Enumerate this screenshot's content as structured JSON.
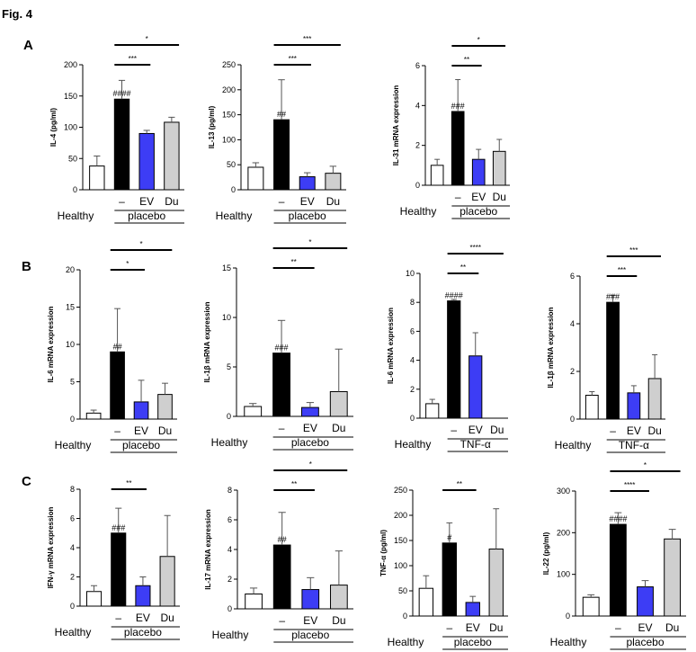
{
  "figure": {
    "title": "Fig. 4",
    "panels": [
      "A",
      "B",
      "C"
    ],
    "colors": {
      "healthy": "#ffffff",
      "placebo": "#000000",
      "ev": "#3d3df5",
      "du": "#cfcfcf",
      "axis": "#000000"
    }
  },
  "chart_data": [
    {
      "type": "bar",
      "ylabel": "IL-4 (pg/ml)",
      "ylim": [
        0,
        200
      ],
      "yticks": [
        0,
        50,
        100,
        150,
        200
      ],
      "categories": [
        "",
        "–",
        "EV",
        "Du"
      ],
      "values": [
        38,
        145,
        90,
        108
      ],
      "errors": [
        16,
        30,
        5,
        8
      ],
      "marks": [
        "",
        "####",
        "",
        ""
      ],
      "brackets": [
        {
          "from": 1,
          "to": 2,
          "label": "***"
        },
        {
          "from": 1,
          "to": 3,
          "label": "*"
        }
      ],
      "group_labels": {
        "healthy": "Healthy",
        "treatment": "placebo"
      }
    },
    {
      "type": "bar",
      "ylabel": "IL-13 (pg/ml)",
      "ylim": [
        0,
        250
      ],
      "yticks": [
        0,
        50,
        100,
        150,
        200,
        250
      ],
      "categories": [
        "",
        "–",
        "EV",
        "Du"
      ],
      "values": [
        45,
        140,
        26,
        33
      ],
      "errors": [
        9,
        80,
        8,
        14
      ],
      "marks": [
        "",
        "##",
        "",
        ""
      ],
      "brackets": [
        {
          "from": 1,
          "to": 2,
          "label": "***"
        },
        {
          "from": 1,
          "to": 3,
          "label": "***"
        }
      ],
      "group_labels": {
        "healthy": "Healthy",
        "treatment": "placebo"
      }
    },
    {
      "type": "bar",
      "ylabel": "IL-31 mRNA expression",
      "ylim": [
        0,
        6
      ],
      "yticks": [
        0,
        2,
        4,
        6
      ],
      "categories": [
        "",
        "–",
        "EV",
        "Du"
      ],
      "values": [
        1.0,
        3.7,
        1.3,
        1.7
      ],
      "errors": [
        0.3,
        1.6,
        0.5,
        0.6
      ],
      "marks": [
        "",
        "###",
        "",
        ""
      ],
      "brackets": [
        {
          "from": 1,
          "to": 2,
          "label": "**"
        },
        {
          "from": 1,
          "to": 3,
          "label": "*"
        }
      ],
      "group_labels": {
        "healthy": "Healthy",
        "treatment": "placebo"
      }
    },
    {
      "type": "bar",
      "ylabel": "IL-6 mRNA expression",
      "ylim": [
        0,
        20
      ],
      "yticks": [
        0,
        5,
        10,
        15,
        20
      ],
      "categories": [
        "",
        "–",
        "EV",
        "Du"
      ],
      "values": [
        0.8,
        9.0,
        2.3,
        3.3
      ],
      "errors": [
        0.4,
        5.8,
        2.9,
        1.5
      ],
      "marks": [
        "",
        "##",
        "",
        ""
      ],
      "brackets": [
        {
          "from": 1,
          "to": 2,
          "label": "*"
        },
        {
          "from": 1,
          "to": 3,
          "label": "*"
        }
      ],
      "group_labels": {
        "healthy": "Healthy",
        "treatment": "placebo"
      }
    },
    {
      "type": "bar",
      "ylabel": "IL-1β mRNA expression",
      "ylim": [
        0,
        15
      ],
      "yticks": [
        0,
        5,
        10,
        15
      ],
      "categories": [
        "",
        "–",
        "EV",
        "Du"
      ],
      "values": [
        1.0,
        6.4,
        0.9,
        2.5
      ],
      "errors": [
        0.3,
        3.3,
        0.5,
        4.3
      ],
      "marks": [
        "",
        "###",
        "",
        ""
      ],
      "brackets": [
        {
          "from": 1,
          "to": 2,
          "label": "**"
        },
        {
          "from": 1,
          "to": 3,
          "label": "*"
        }
      ],
      "group_labels": {
        "healthy": "Healthy",
        "treatment": "placebo"
      }
    },
    {
      "type": "bar",
      "ylabel": "IL-6 mRNA expression",
      "ylim": [
        0,
        10
      ],
      "yticks": [
        0,
        2,
        4,
        6,
        8,
        10
      ],
      "categories": [
        "",
        "–",
        "EV",
        "Du"
      ],
      "values": [
        1.0,
        8.1,
        4.3,
        0
      ],
      "errors": [
        0.3,
        0.1,
        1.6,
        0
      ],
      "marks": [
        "",
        "####",
        "",
        ""
      ],
      "brackets": [
        {
          "from": 1,
          "to": 2,
          "label": "**"
        },
        {
          "from": 1,
          "to": 3,
          "label": "****"
        }
      ],
      "group_labels": {
        "healthy": "Healthy",
        "treatment": "TNF-α"
      }
    },
    {
      "type": "bar",
      "ylabel": "IL-1β mRNA expression",
      "ylim": [
        0,
        6
      ],
      "yticks": [
        0,
        2,
        4,
        6
      ],
      "categories": [
        "",
        "–",
        "EV",
        "Du"
      ],
      "values": [
        1.0,
        4.9,
        1.1,
        1.7
      ],
      "errors": [
        0.15,
        0.3,
        0.3,
        1.0
      ],
      "marks": [
        "",
        "###",
        "",
        ""
      ],
      "brackets": [
        {
          "from": 1,
          "to": 2,
          "label": "***"
        },
        {
          "from": 1,
          "to": 3,
          "label": "***"
        }
      ],
      "group_labels": {
        "healthy": "Healthy",
        "treatment": "TNF-α"
      }
    },
    {
      "type": "bar",
      "ylabel": "IFN-γ mRNA expression",
      "ylim": [
        0,
        8
      ],
      "yticks": [
        0,
        2,
        4,
        6,
        8
      ],
      "categories": [
        "",
        "–",
        "EV",
        "Du"
      ],
      "values": [
        1.0,
        5.0,
        1.4,
        3.4
      ],
      "errors": [
        0.4,
        1.7,
        0.6,
        2.8
      ],
      "marks": [
        "",
        "###",
        "",
        ""
      ],
      "brackets": [
        {
          "from": 1,
          "to": 2,
          "label": "**"
        }
      ],
      "group_labels": {
        "healthy": "Healthy",
        "treatment": "placebo"
      }
    },
    {
      "type": "bar",
      "ylabel": "IL-17 mRNA expression",
      "ylim": [
        0,
        8
      ],
      "yticks": [
        0,
        2,
        4,
        6,
        8
      ],
      "categories": [
        "",
        "–",
        "EV",
        "Du"
      ],
      "values": [
        1.0,
        4.3,
        1.3,
        1.6
      ],
      "errors": [
        0.4,
        2.2,
        0.8,
        2.3
      ],
      "marks": [
        "",
        "##",
        "",
        ""
      ],
      "brackets": [
        {
          "from": 1,
          "to": 2,
          "label": "**"
        },
        {
          "from": 1,
          "to": 3,
          "label": "*"
        }
      ],
      "group_labels": {
        "healthy": "Healthy",
        "treatment": "placebo"
      }
    },
    {
      "type": "bar",
      "ylabel": "TNF-α (pg/ml)",
      "ylim": [
        0,
        250
      ],
      "yticks": [
        0,
        50,
        100,
        150,
        200,
        250
      ],
      "categories": [
        "",
        "–",
        "EV",
        "Du"
      ],
      "values": [
        55,
        145,
        27,
        133
      ],
      "errors": [
        25,
        40,
        12,
        80
      ],
      "marks": [
        "",
        "#",
        "",
        ""
      ],
      "brackets": [
        {
          "from": 1,
          "to": 2,
          "label": "**"
        }
      ],
      "group_labels": {
        "healthy": "Healthy",
        "treatment": "placebo"
      }
    },
    {
      "type": "bar",
      "ylabel": "IL-22 (pg/ml)",
      "ylim": [
        0,
        300
      ],
      "yticks": [
        0,
        100,
        200,
        300
      ],
      "categories": [
        "",
        "–",
        "EV",
        "Du"
      ],
      "values": [
        45,
        220,
        70,
        185
      ],
      "errors": [
        6,
        28,
        15,
        23
      ],
      "marks": [
        "",
        "####",
        "",
        ""
      ],
      "brackets": [
        {
          "from": 1,
          "to": 2,
          "label": "****"
        },
        {
          "from": 1,
          "to": 3,
          "label": "*"
        }
      ],
      "group_labels": {
        "healthy": "Healthy",
        "treatment": "placebo"
      }
    }
  ]
}
